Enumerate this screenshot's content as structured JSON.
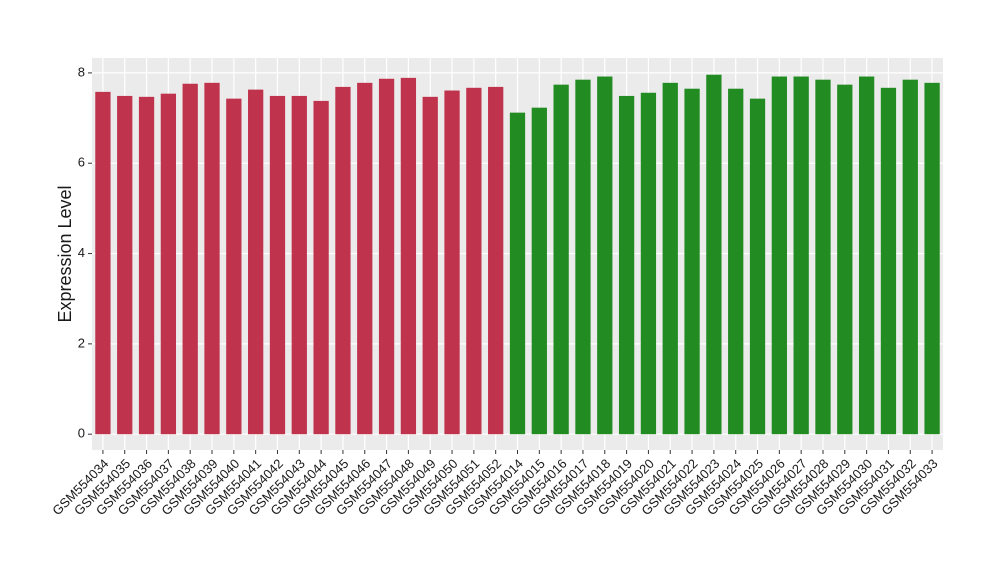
{
  "chart_data": {
    "type": "bar",
    "y_label": "Expression Level",
    "categories": [
      "GSM554034",
      "GSM554035",
      "GSM554036",
      "GSM554037",
      "GSM554038",
      "GSM554039",
      "GSM554040",
      "GSM554041",
      "GSM554042",
      "GSM554043",
      "GSM554044",
      "GSM554045",
      "GSM554046",
      "GSM554047",
      "GSM554048",
      "GSM554049",
      "GSM554050",
      "GSM554051",
      "GSM554052",
      "GSM554014",
      "GSM554015",
      "GSM554016",
      "GSM554017",
      "GSM554018",
      "GSM554019",
      "GSM554020",
      "GSM554021",
      "GSM554022",
      "GSM554023",
      "GSM554024",
      "GSM554025",
      "GSM554026",
      "GSM554027",
      "GSM554028",
      "GSM554029",
      "GSM554030",
      "GSM554031",
      "GSM554032",
      "GSM554033"
    ],
    "values": [
      7.58,
      7.49,
      7.47,
      7.54,
      7.76,
      7.78,
      7.43,
      7.63,
      7.49,
      7.49,
      7.38,
      7.69,
      7.78,
      7.87,
      7.89,
      7.47,
      7.61,
      7.67,
      7.69,
      7.12,
      7.23,
      7.74,
      7.85,
      7.92,
      7.49,
      7.56,
      7.78,
      7.65,
      7.96,
      7.65,
      7.43,
      7.92,
      7.92,
      7.85,
      7.74,
      7.92,
      7.67,
      7.85,
      7.78
    ],
    "colors": [
      "#c0334d",
      "#c0334d",
      "#c0334d",
      "#c0334d",
      "#c0334d",
      "#c0334d",
      "#c0334d",
      "#c0334d",
      "#c0334d",
      "#c0334d",
      "#c0334d",
      "#c0334d",
      "#c0334d",
      "#c0334d",
      "#c0334d",
      "#c0334d",
      "#c0334d",
      "#c0334d",
      "#c0334d",
      "#228b22",
      "#228b22",
      "#228b22",
      "#228b22",
      "#228b22",
      "#228b22",
      "#228b22",
      "#228b22",
      "#228b22",
      "#228b22",
      "#228b22",
      "#228b22",
      "#228b22",
      "#228b22",
      "#228b22",
      "#228b22",
      "#228b22",
      "#228b22",
      "#228b22",
      "#228b22"
    ],
    "ylim": [
      -0.35,
      8.33
    ],
    "yticks": [
      0,
      2,
      4,
      6,
      8
    ],
    "grid": true
  }
}
